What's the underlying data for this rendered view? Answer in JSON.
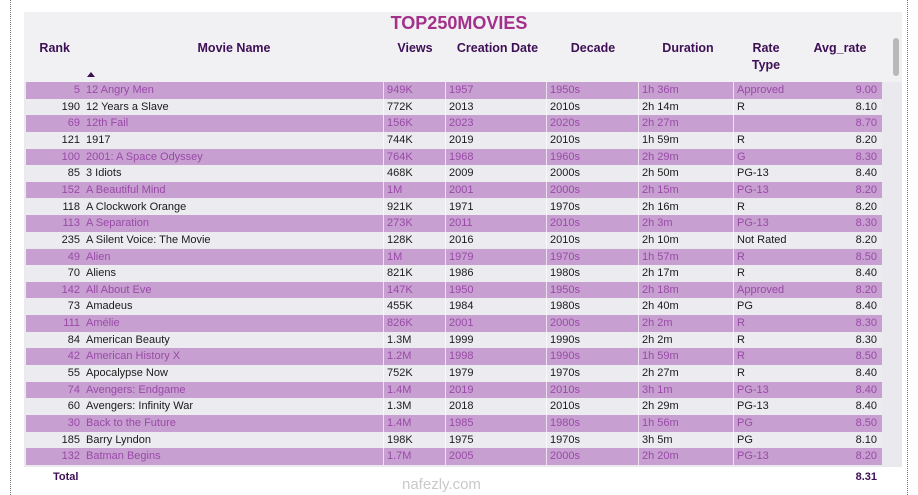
{
  "header": {
    "title": "TOP250MOVIES"
  },
  "table": {
    "columns": [
      "Rank",
      "Movie Name",
      "Views",
      "Creation Date",
      "Decade",
      "Duration",
      "Rate Type",
      "Avg_rate"
    ],
    "rows": [
      [
        5,
        "12 Angry Men",
        "949K",
        "1957",
        "1950s",
        "1h 36m",
        "Approved",
        "9.00"
      ],
      [
        190,
        "12 Years a Slave",
        "772K",
        "2013",
        "2010s",
        "2h 14m",
        "R",
        "8.10"
      ],
      [
        69,
        "12th Fail",
        "156K",
        "2023",
        "2020s",
        "2h 27m",
        null,
        "8.70"
      ],
      [
        121,
        "1917",
        "744K",
        "2019",
        "2010s",
        "1h 59m",
        "R",
        "8.20"
      ],
      [
        100,
        "2001: A Space Odyssey",
        "764K",
        "1968",
        "1960s",
        "2h 29m",
        "G",
        "8.30"
      ],
      [
        85,
        "3 Idiots",
        "468K",
        "2009",
        "2000s",
        "2h 50m",
        "PG-13",
        "8.40"
      ],
      [
        152,
        "A Beautiful Mind",
        "1M",
        "2001",
        "2000s",
        "2h 15m",
        "PG-13",
        "8.20"
      ],
      [
        118,
        "A Clockwork Orange",
        "921K",
        "1971",
        "1970s",
        "2h 16m",
        "R",
        "8.20"
      ],
      [
        113,
        "A Separation",
        "273K",
        "2011",
        "2010s",
        "2h 3m",
        "PG-13",
        "8.30"
      ],
      [
        235,
        "A Silent Voice: The Movie",
        "128K",
        "2016",
        "2010s",
        "2h 10m",
        "Not Rated",
        "8.20"
      ],
      [
        49,
        "Alien",
        "1M",
        "1979",
        "1970s",
        "1h 57m",
        "R",
        "8.50"
      ],
      [
        70,
        "Aliens",
        "821K",
        "1986",
        "1980s",
        "2h 17m",
        "R",
        "8.40"
      ],
      [
        142,
        "All About Eve",
        "147K",
        "1950",
        "1950s",
        "2h 18m",
        "Approved",
        "8.20"
      ],
      [
        73,
        "Amadeus",
        "455K",
        "1984",
        "1980s",
        "2h 40m",
        "PG",
        "8.40"
      ],
      [
        111,
        "Amélie",
        "826K",
        "2001",
        "2000s",
        "2h 2m",
        "R",
        "8.30"
      ],
      [
        84,
        "American Beauty",
        "1.3M",
        "1999",
        "1990s",
        "2h 2m",
        "R",
        "8.30"
      ],
      [
        42,
        "American History X",
        "1.2M",
        "1998",
        "1990s",
        "1h 59m",
        "R",
        "8.50"
      ],
      [
        55,
        "Apocalypse Now",
        "752K",
        "1979",
        "1970s",
        "2h 27m",
        "R",
        "8.40"
      ],
      [
        74,
        "Avengers: Endgame",
        "1.4M",
        "2019",
        "2010s",
        "3h 1m",
        "PG-13",
        "8.40"
      ],
      [
        60,
        "Avengers: Infinity War",
        "1.3M",
        "2018",
        "2010s",
        "2h 29m",
        "PG-13",
        "8.40"
      ],
      [
        30,
        "Back to the Future",
        "1.4M",
        "1985",
        "1980s",
        "1h 56m",
        "PG",
        "8.50"
      ],
      [
        185,
        "Barry Lyndon",
        "198K",
        "1975",
        "1970s",
        "3h 5m",
        "PG",
        "8.10"
      ],
      [
        132,
        "Batman Begins",
        "1.7M",
        "2005",
        "2000s",
        "2h 20m",
        "PG-13",
        "8.20"
      ]
    ],
    "total": {
      "label": "Total",
      "avg_rate": "8.31"
    }
  },
  "watermark": "nafezly.com"
}
